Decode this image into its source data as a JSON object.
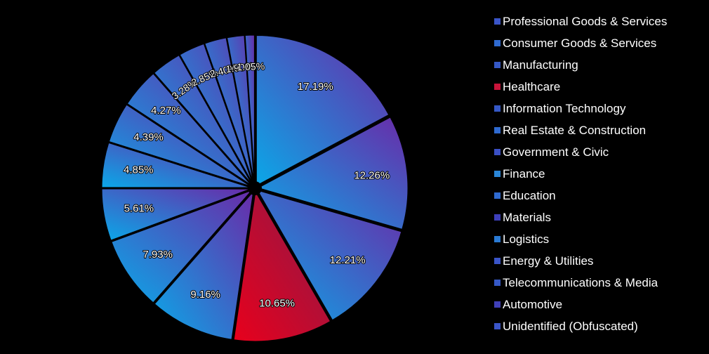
{
  "chart_data": {
    "type": "pie",
    "title": "",
    "legend_position": "right",
    "categories": [
      "Professional Goods & Services",
      "Consumer Goods & Services",
      "Manufacturing",
      "Healthcare",
      "Information Technology",
      "Real Estate & Construction",
      "Government & Civic",
      "Finance",
      "Education",
      "Materials",
      "Logistics",
      "Energy & Utilities",
      "Telecommunications & Media",
      "Automotive",
      "Unidentified (Obfuscated)"
    ],
    "values": [
      17.19,
      12.26,
      12.21,
      10.65,
      9.16,
      7.93,
      5.61,
      4.85,
      4.39,
      4.27,
      3.28,
      2.85,
      2.4,
      1.9,
      1.05
    ],
    "labels": [
      "17.19%",
      "12.26%",
      "12.21%",
      "10.65%",
      "9.16%",
      "7.93%",
      "5.61%",
      "4.85%",
      "4.39%",
      "4.27%",
      "3.28%",
      "2.85%",
      "2.40%",
      "1.90%",
      "1.05%"
    ],
    "colors": {
      "blue_start": "#0aa8e8",
      "purple_end": "#6a2aa8",
      "red_start": "#e8001c",
      "red_end": "#8a1a4a",
      "background": "#000000"
    },
    "swatch_colors": [
      "#3a55c8",
      "#2f6ad0",
      "#3558c6",
      "#c8143a",
      "#3558c6",
      "#2f6ad0",
      "#3a4fc4",
      "#2a86d8",
      "#2f6ad0",
      "#3d3fba",
      "#2a7ad4",
      "#3a55c8",
      "#3558c6",
      "#4040b8",
      "#3a55c8"
    ]
  }
}
